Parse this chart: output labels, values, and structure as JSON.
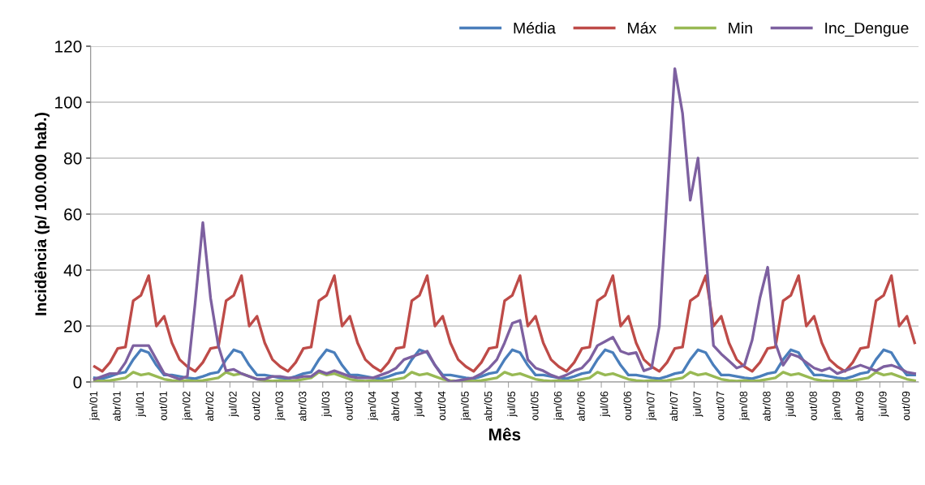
{
  "chart_data": {
    "type": "line",
    "xlabel": "Mês",
    "ylabel": "Incidência (p/ 100.000 hab.)",
    "categories": [
      "jan/01",
      null,
      null,
      "abr/01",
      null,
      null,
      "jul/01",
      null,
      null,
      "out/01",
      null,
      null,
      "jan/02",
      null,
      null,
      "abr/02",
      null,
      null,
      "jul/02",
      null,
      null,
      "out/02",
      null,
      null,
      "jan/03",
      null,
      null,
      "abr/03",
      null,
      null,
      "jul/03",
      null,
      null,
      "out/03",
      null,
      null,
      "jan/04",
      null,
      null,
      "abr/04",
      null,
      null,
      "jul/04",
      null,
      null,
      "out/04",
      null,
      null,
      "jan/05",
      null,
      null,
      "abr/05",
      null,
      null,
      "jul/05",
      null,
      null,
      "out/05",
      null,
      null,
      "jan/06",
      null,
      null,
      "abr/06",
      null,
      null,
      "jul/06",
      null,
      null,
      "out/06",
      null,
      null,
      "jan/07",
      null,
      null,
      "abr/07",
      null,
      null,
      "jul/07",
      null,
      null,
      "out/07",
      null,
      null,
      "jan/08",
      null,
      null,
      "abr/08",
      null,
      null,
      "jul/08",
      null,
      null,
      "out/08",
      null,
      null,
      "jan/09",
      null,
      null,
      "abr/09",
      null,
      null,
      "jul/09",
      null,
      null,
      "out/09",
      null
    ],
    "series": [
      {
        "name": "Média",
        "color": "#4a7ebb",
        "values": [
          1.5,
          1.2,
          2,
          3,
          3.5,
          8,
          11.5,
          10.5,
          6,
          2.5,
          2.5,
          2,
          1.5,
          1.2,
          2,
          3,
          3.5,
          8,
          11.5,
          10.5,
          6,
          2.5,
          2.5,
          2,
          1.5,
          1.2,
          2,
          3,
          3.5,
          8,
          11.5,
          10.5,
          6,
          2.5,
          2.5,
          2,
          1.5,
          1.2,
          2,
          3,
          3.5,
          8,
          11.5,
          10.5,
          6,
          2.5,
          2.5,
          2,
          1.5,
          1.2,
          2,
          3,
          3.5,
          8,
          11.5,
          10.5,
          6,
          2.5,
          2.5,
          2,
          1.5,
          1.2,
          2,
          3,
          3.5,
          8,
          11.5,
          10.5,
          6,
          2.5,
          2.5,
          2,
          1.5,
          1.2,
          2,
          3,
          3.5,
          8,
          11.5,
          10.5,
          6,
          2.5,
          2.5,
          2,
          1.5,
          1.2,
          2,
          3,
          3.5,
          8,
          11.5,
          10.5,
          6,
          2.5,
          2.5,
          2,
          1.5,
          1.2,
          2,
          3,
          3.5,
          8,
          11.5,
          10.5,
          6,
          2.5,
          2.5
        ]
      },
      {
        "name": "Máx",
        "color": "#be4b48",
        "values": [
          5.5,
          3.8,
          7,
          12,
          12.5,
          29,
          31,
          38,
          20,
          23.5,
          14,
          8,
          5.5,
          3.8,
          7,
          12,
          12.5,
          29,
          31,
          38,
          20,
          23.5,
          14,
          8,
          5.5,
          3.8,
          7,
          12,
          12.5,
          29,
          31,
          38,
          20,
          23.5,
          14,
          8,
          5.5,
          3.8,
          7,
          12,
          12.5,
          29,
          31,
          38,
          20,
          23.5,
          14,
          8,
          5.5,
          3.8,
          7,
          12,
          12.5,
          29,
          31,
          38,
          20,
          23.5,
          14,
          8,
          5.5,
          3.8,
          7,
          12,
          12.5,
          29,
          31,
          38,
          20,
          23.5,
          14,
          8,
          5.5,
          3.8,
          7,
          12,
          12.5,
          29,
          31,
          38,
          20,
          23.5,
          14,
          8,
          5.5,
          3.8,
          7,
          12,
          12.5,
          29,
          31,
          38,
          20,
          23.5,
          14,
          8,
          5.5,
          3.8,
          7,
          12,
          12.5,
          29,
          31,
          38,
          20,
          23.5,
          14
        ]
      },
      {
        "name": "Min",
        "color": "#98b954",
        "values": [
          0.5,
          0.3,
          0.5,
          1,
          1.5,
          3.5,
          2.5,
          3,
          2,
          1,
          0.5,
          0.3,
          0.5,
          0.3,
          0.5,
          1,
          1.5,
          3.5,
          2.5,
          3,
          2,
          1,
          0.5,
          0.3,
          0.5,
          0.3,
          0.5,
          1,
          1.5,
          3.5,
          2.5,
          3,
          2,
          1,
          0.5,
          0.3,
          0.5,
          0.3,
          0.5,
          1,
          1.5,
          3.5,
          2.5,
          3,
          2,
          1,
          0.5,
          0.3,
          0.5,
          0.3,
          0.5,
          1,
          1.5,
          3.5,
          2.5,
          3,
          2,
          1,
          0.5,
          0.3,
          0.5,
          0.3,
          0.5,
          1,
          1.5,
          3.5,
          2.5,
          3,
          2,
          1,
          0.5,
          0.3,
          0.5,
          0.3,
          0.5,
          1,
          1.5,
          3.5,
          2.5,
          3,
          2,
          1,
          0.5,
          0.3,
          0.5,
          0.3,
          0.5,
          1,
          1.5,
          3.5,
          2.5,
          3,
          2,
          1,
          0.5,
          0.3,
          0.5,
          0.3,
          0.5,
          1,
          1.5,
          3.5,
          2.5,
          3,
          2,
          1,
          0.5
        ]
      },
      {
        "name": "Inc_Dengue",
        "color": "#7d60a0",
        "values": [
          1,
          2,
          3,
          3,
          7,
          13,
          13,
          13,
          8,
          3,
          2,
          1,
          2,
          28,
          57,
          30,
          13,
          4,
          4.5,
          3,
          2,
          1,
          1,
          2,
          2,
          1.5,
          1.5,
          2,
          2,
          4,
          3,
          4,
          3,
          2,
          1.5,
          1.5,
          1.5,
          2.5,
          3.5,
          5,
          8,
          9,
          10,
          11,
          6,
          2,
          0,
          0.5,
          1,
          1.5,
          3,
          5,
          8,
          14,
          21,
          22,
          8,
          5,
          4,
          2.5,
          1.5,
          2.5,
          4,
          5,
          8,
          13,
          14.5,
          16,
          11,
          10,
          10.5,
          4,
          5,
          20,
          66,
          112,
          96,
          65,
          80,
          46,
          13,
          10,
          7.5,
          5,
          6,
          15,
          30,
          41,
          14,
          6,
          10,
          9,
          7,
          5,
          4,
          5,
          3,
          4,
          5,
          6,
          5,
          4,
          5.5,
          6,
          5,
          3.5,
          3
        ]
      }
    ],
    "ylim": [
      0,
      120
    ],
    "yticks": [
      0,
      20,
      40,
      60,
      80,
      100,
      120
    ],
    "grid": "y",
    "legend": "top right",
    "marker": "none",
    "line_style": "solid"
  }
}
